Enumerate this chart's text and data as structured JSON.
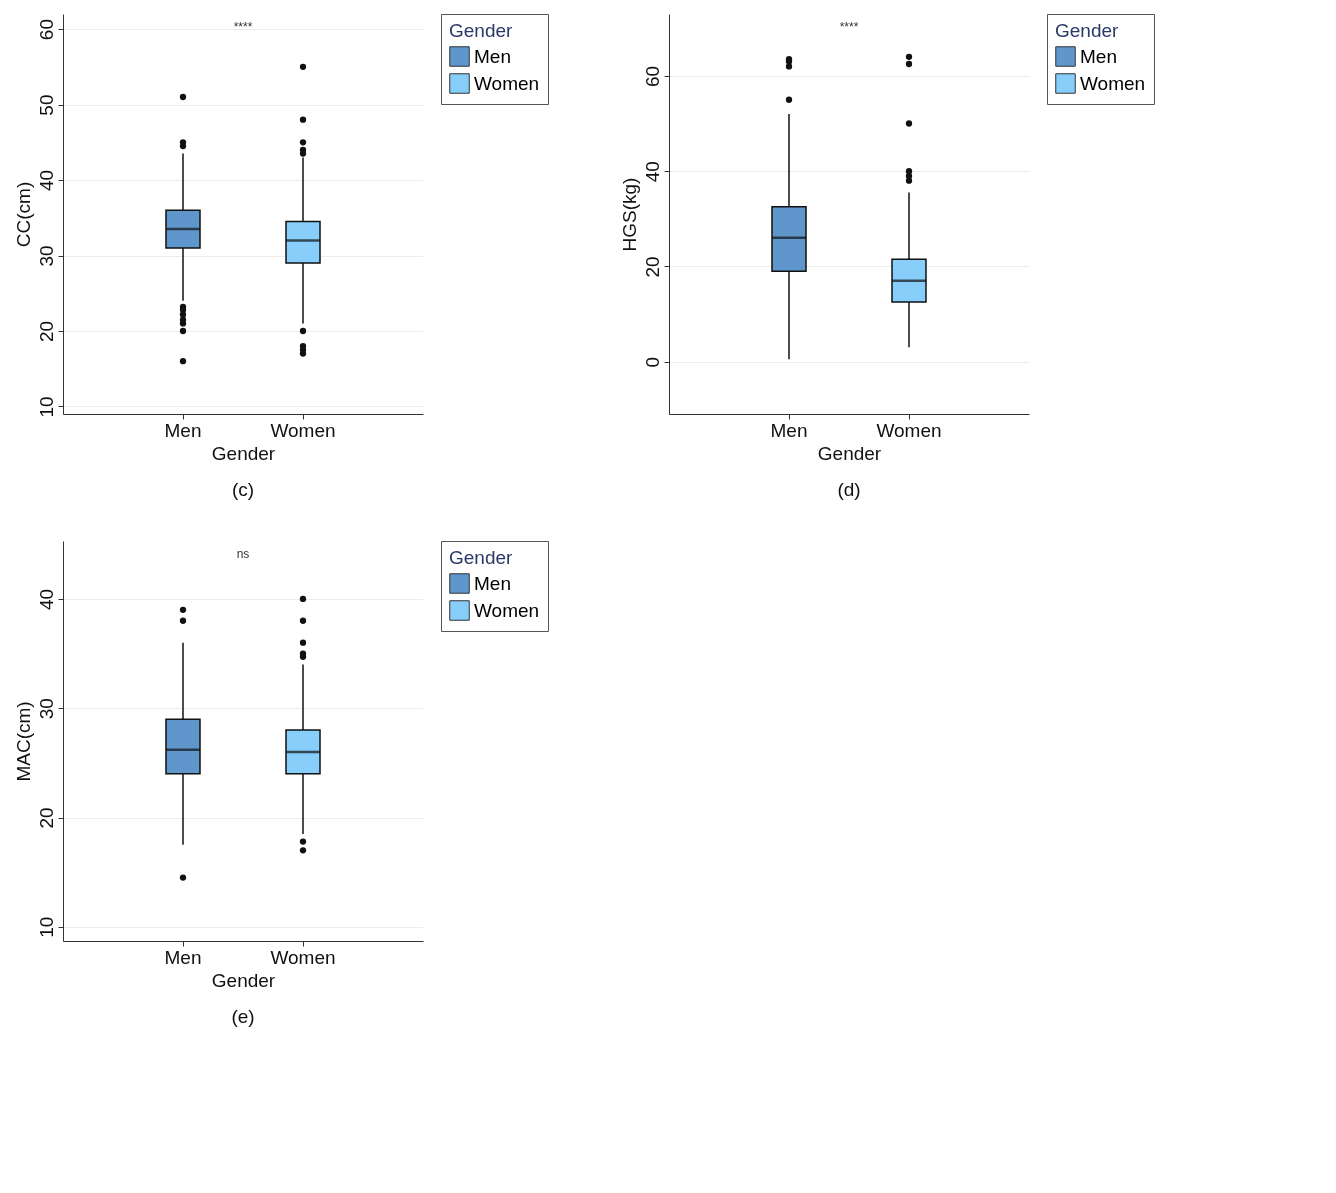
{
  "chart_data": [
    {
      "type": "box",
      "title": "(c)",
      "categories": [
        "Men",
        "Women"
      ],
      "xlabel": "Gender",
      "ylabel": "CC(cm)",
      "legend_title": "Gender",
      "legend": "right",
      "grid": "y",
      "ylim": [
        9,
        62
      ],
      "yticks": [
        10,
        20,
        30,
        40,
        50,
        60
      ],
      "annotations": [
        "****"
      ],
      "series": [
        {
          "name": "Men",
          "color": "#5f97cc",
          "boxes": [
            {
              "low": 24,
              "q1": 31,
              "median": 33.5,
              "q3": 36,
              "high": 43.5,
              "outliers": [
                51,
                45,
                44.5,
                23.2,
                22.8,
                22.2,
                21.5,
                21,
                20,
                16
              ]
            },
            null
          ]
        },
        {
          "name": "Women",
          "color": "#87cefa",
          "boxes": [
            null,
            {
              "low": 21,
              "q1": 29,
              "median": 32,
              "q3": 34.5,
              "high": 43,
              "outliers": [
                55,
                48,
                45,
                44,
                43.5,
                20,
                18,
                17.5,
                17
              ]
            }
          ]
        }
      ]
    },
    {
      "type": "box",
      "title": "(d)",
      "categories": [
        "Men",
        "Women"
      ],
      "xlabel": "Gender",
      "ylabel": "HGS(kg)",
      "legend_title": "Gender",
      "legend": "right",
      "grid": "y",
      "ylim": [
        -11,
        73
      ],
      "yticks": [
        0,
        20,
        40,
        60
      ],
      "annotations": [
        "****"
      ],
      "series": [
        {
          "name": "Men",
          "color": "#5f97cc",
          "boxes": [
            {
              "low": 0.5,
              "q1": 19,
              "median": 26,
              "q3": 32.5,
              "high": 52,
              "outliers": [
                63.5,
                63,
                62,
                55
              ]
            },
            null
          ]
        },
        {
          "name": "Women",
          "color": "#87cefa",
          "boxes": [
            null,
            {
              "low": 3,
              "q1": 12.5,
              "median": 17,
              "q3": 21.5,
              "high": 35.5,
              "outliers": [
                64,
                62.5,
                50,
                40,
                39,
                38
              ]
            }
          ]
        }
      ]
    },
    {
      "type": "box",
      "title": "(e)",
      "categories": [
        "Men",
        "Women"
      ],
      "xlabel": "Gender",
      "ylabel": "MAC(cm)",
      "legend_title": "Gender",
      "legend": "right",
      "grid": "y",
      "ylim": [
        8.7,
        45.3
      ],
      "yticks": [
        10,
        20,
        30,
        40
      ],
      "annotations": [
        "ns"
      ],
      "series": [
        {
          "name": "Men",
          "color": "#5f97cc",
          "boxes": [
            {
              "low": 17.5,
              "q1": 24,
              "median": 26.2,
              "q3": 29,
              "high": 36,
              "outliers": [
                39,
                38,
                14.5
              ]
            },
            null
          ]
        },
        {
          "name": "Women",
          "color": "#87cefa",
          "boxes": [
            null,
            {
              "low": 18.5,
              "q1": 24,
              "median": 26,
              "q3": 28,
              "high": 34,
              "outliers": [
                40,
                38,
                36,
                35,
                34.7,
                17.8,
                17
              ]
            }
          ]
        }
      ]
    }
  ]
}
